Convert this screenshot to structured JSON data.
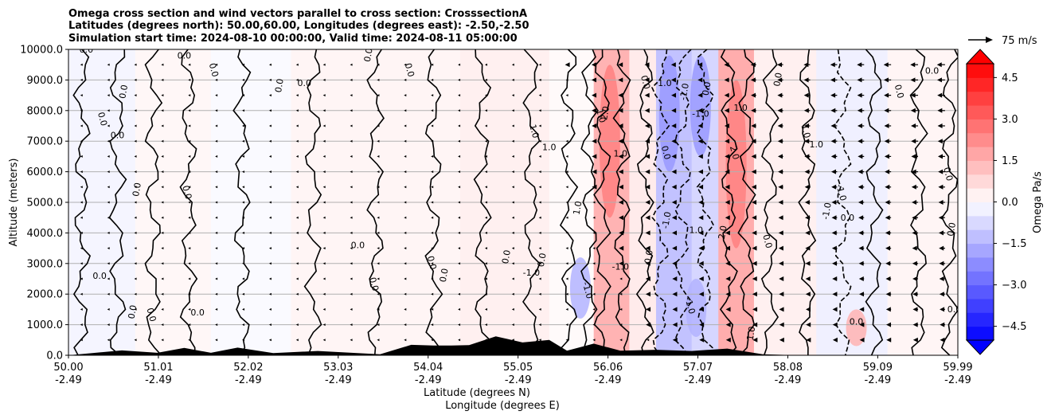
{
  "chart_data": {
    "type": "heatmap",
    "title_lines": [
      "Omega cross section and wind vectors parallel to cross section: CrosssectionA",
      "Latitudes (degrees north): 50.00,60.00, Longitudes (degrees east): -2.50,-2.50",
      "Simulation start time: 2024-08-10 00:00:00, Valid time: 2024-08-11 05:00:00"
    ],
    "xlabel_lat": "Latitude (degrees N)",
    "xlabel_lon": "Longitude (degrees E)",
    "ylabel": "Altitude (meters)",
    "xlim": [
      50.0,
      59.99
    ],
    "ylim": [
      0,
      10000
    ],
    "x_ticks": [
      {
        "lat": "50.00",
        "lon": "-2.49",
        "value": 50.0
      },
      {
        "lat": "51.01",
        "lon": "-2.49",
        "value": 51.01
      },
      {
        "lat": "52.02",
        "lon": "-2.49",
        "value": 52.02
      },
      {
        "lat": "53.03",
        "lon": "-2.49",
        "value": 53.03
      },
      {
        "lat": "54.04",
        "lon": "-2.49",
        "value": 54.04
      },
      {
        "lat": "55.05",
        "lon": "-2.49",
        "value": 55.05
      },
      {
        "lat": "56.06",
        "lon": "-2.49",
        "value": 56.06
      },
      {
        "lat": "57.07",
        "lon": "-2.49",
        "value": 57.07
      },
      {
        "lat": "58.08",
        "lon": "-2.49",
        "value": 58.08
      },
      {
        "lat": "59.09",
        "lon": "-2.49",
        "value": 59.09
      },
      {
        "lat": "59.99",
        "lon": "-2.49",
        "value": 59.99
      }
    ],
    "y_ticks": [
      {
        "label": "0.0",
        "value": 0
      },
      {
        "label": "1000.0",
        "value": 1000
      },
      {
        "label": "2000.0",
        "value": 2000
      },
      {
        "label": "3000.0",
        "value": 3000
      },
      {
        "label": "4000.0",
        "value": 4000
      },
      {
        "label": "5000.0",
        "value": 5000
      },
      {
        "label": "6000.0",
        "value": 6000
      },
      {
        "label": "7000.0",
        "value": 7000
      },
      {
        "label": "8000.0",
        "value": 8000
      },
      {
        "label": "9000.0",
        "value": 9000
      },
      {
        "label": "10000.0",
        "value": 10000
      }
    ],
    "grid": "horizontal",
    "colorbar": {
      "label": "Omega Pa/s",
      "range": [
        -5,
        5
      ],
      "levels": 20,
      "extend": "both",
      "ticks": [
        {
          "label": "4.5",
          "value": 4.5
        },
        {
          "label": "3.0",
          "value": 3.0
        },
        {
          "label": "1.5",
          "value": 1.5
        },
        {
          "label": "0.0",
          "value": 0.0
        },
        {
          "label": "−1.5",
          "value": -1.5
        },
        {
          "label": "−3.0",
          "value": -3.0
        },
        {
          "label": "−4.5",
          "value": -4.5
        }
      ],
      "colormap": "bwr"
    },
    "quiver_key": {
      "label": "75 m/s",
      "value": 75
    },
    "omega_bands": [
      {
        "lat_start": 50.0,
        "lat_end": 50.75,
        "omega": -0.2
      },
      {
        "lat_start": 50.75,
        "lat_end": 51.6,
        "omega": 0.15
      },
      {
        "lat_start": 51.6,
        "lat_end": 52.5,
        "omega": -0.1
      },
      {
        "lat_start": 52.5,
        "lat_end": 54.4,
        "omega": 0.2
      },
      {
        "lat_start": 54.4,
        "lat_end": 55.4,
        "omega": 0.3
      },
      {
        "lat_start": 55.4,
        "lat_end": 55.9,
        "omega": 0.1
      },
      {
        "lat_start": 55.9,
        "lat_end": 56.3,
        "omega": 1.5
      },
      {
        "lat_start": 56.3,
        "lat_end": 56.6,
        "omega": 0.4
      },
      {
        "lat_start": 56.6,
        "lat_end": 57.0,
        "omega": -1.2
      },
      {
        "lat_start": 57.0,
        "lat_end": 57.3,
        "omega": -0.8
      },
      {
        "lat_start": 57.3,
        "lat_end": 57.7,
        "omega": 1.6
      },
      {
        "lat_start": 57.7,
        "lat_end": 58.4,
        "omega": 0.3
      },
      {
        "lat_start": 58.4,
        "lat_end": 59.2,
        "omega": -0.3
      },
      {
        "lat_start": 59.2,
        "lat_end": 59.99,
        "omega": 0.2
      }
    ],
    "omega_patches": [
      {
        "lat": 56.08,
        "alt_min": 4500,
        "alt_max": 9500,
        "omega": 2.5
      },
      {
        "lat": 57.5,
        "alt_min": 3500,
        "alt_max": 9000,
        "omega": 2.5
      },
      {
        "lat": 56.75,
        "alt_min": 6000,
        "alt_max": 9800,
        "omega": -2.0
      },
      {
        "lat": 57.1,
        "alt_min": 6500,
        "alt_max": 9800,
        "omega": -2.0
      },
      {
        "lat": 55.75,
        "alt_min": 1200,
        "alt_max": 3200,
        "omega": -1.5
      },
      {
        "lat": 57.05,
        "alt_min": 600,
        "alt_max": 2500,
        "omega": -1.5
      },
      {
        "lat": 58.85,
        "alt_min": 300,
        "alt_max": 1500,
        "omega": 1.5
      }
    ],
    "contour_lines": [
      {
        "lat": 50.15,
        "level": "0.0",
        "dashed": false
      },
      {
        "lat": 50.55,
        "level": "0.0",
        "dashed": false
      },
      {
        "lat": 50.95,
        "level": "0.0",
        "dashed": false
      },
      {
        "lat": 51.35,
        "level": "0.0",
        "dashed": false
      },
      {
        "lat": 51.95,
        "level": "0.0",
        "dashed": false
      },
      {
        "lat": 52.75,
        "level": "0.0",
        "dashed": false
      },
      {
        "lat": 53.45,
        "level": "0.0",
        "dashed": false
      },
      {
        "lat": 54.1,
        "level": "0.0",
        "dashed": false
      },
      {
        "lat": 54.65,
        "level": "0.0",
        "dashed": false
      },
      {
        "lat": 55.2,
        "level": "0.0",
        "dashed": false
      },
      {
        "lat": 55.62,
        "level": "1.0",
        "dashed": false
      },
      {
        "lat": 55.85,
        "level": "1.0",
        "dashed": false
      },
      {
        "lat": 56.0,
        "level": "2.0",
        "dashed": false
      },
      {
        "lat": 56.22,
        "level": "1.0",
        "dashed": false
      },
      {
        "lat": 56.48,
        "level": "0.0",
        "dashed": false
      },
      {
        "lat": 56.65,
        "level": "-1.0",
        "dashed": true
      },
      {
        "lat": 56.9,
        "level": "-1.0",
        "dashed": true
      },
      {
        "lat": 57.15,
        "level": "-1.0",
        "dashed": true
      },
      {
        "lat": 57.42,
        "level": "2.0",
        "dashed": false
      },
      {
        "lat": 57.62,
        "level": "1.0",
        "dashed": false
      },
      {
        "lat": 57.88,
        "level": "0.0",
        "dashed": false
      },
      {
        "lat": 58.3,
        "level": "1.0",
        "dashed": false
      },
      {
        "lat": 58.7,
        "level": "-1.0",
        "dashed": true
      },
      {
        "lat": 59.05,
        "level": "0.0",
        "dashed": false
      },
      {
        "lat": 59.55,
        "level": "0.0",
        "dashed": false
      },
      {
        "lat": 59.9,
        "level": "0.0",
        "dashed": false
      }
    ],
    "contour_labels": [
      {
        "text": "0.0",
        "lat": 50.2,
        "alt": 9900
      },
      {
        "text": "0.0",
        "lat": 50.35,
        "alt": 7700
      },
      {
        "text": "0.0",
        "lat": 50.65,
        "alt": 8600
      },
      {
        "text": "0.0",
        "lat": 50.55,
        "alt": 7100
      },
      {
        "text": "0.0",
        "lat": 50.8,
        "alt": 5400
      },
      {
        "text": "0.0",
        "lat": 51.3,
        "alt": 5300
      },
      {
        "text": "0.0",
        "lat": 51.3,
        "alt": 9700
      },
      {
        "text": "0.0",
        "lat": 51.6,
        "alt": 9300
      },
      {
        "text": "0.0",
        "lat": 52.4,
        "alt": 8800
      },
      {
        "text": "0.0",
        "lat": 52.65,
        "alt": 8800
      },
      {
        "text": "0.0",
        "lat": 53.4,
        "alt": 9800
      },
      {
        "text": "0.0",
        "lat": 53.8,
        "alt": 9300
      },
      {
        "text": "0.0",
        "lat": 53.25,
        "alt": 3500
      },
      {
        "text": "0.0",
        "lat": 54.05,
        "alt": 3000
      },
      {
        "text": "0.0",
        "lat": 54.25,
        "alt": 2600
      },
      {
        "text": "0.0",
        "lat": 50.35,
        "alt": 2500
      },
      {
        "text": "0.0",
        "lat": 50.75,
        "alt": 1400
      },
      {
        "text": "0.0",
        "lat": 50.9,
        "alt": 1300
      },
      {
        "text": "0.0",
        "lat": 51.45,
        "alt": 1300
      },
      {
        "text": "0.0",
        "lat": 53.4,
        "alt": 2300
      },
      {
        "text": "0.0",
        "lat": 54.95,
        "alt": 3200
      },
      {
        "text": "-1.0",
        "lat": 55.2,
        "alt": 2600
      },
      {
        "text": "0.0",
        "lat": 55.35,
        "alt": 3100
      },
      {
        "text": "1.0",
        "lat": 55.2,
        "alt": 7300
      },
      {
        "text": "1.0",
        "lat": 55.4,
        "alt": 6700
      },
      {
        "text": "1.0",
        "lat": 55.95,
        "alt": 7800
      },
      {
        "text": "2.0",
        "lat": 56.06,
        "alt": 7900
      },
      {
        "text": "1.0",
        "lat": 56.2,
        "alt": 6500
      },
      {
        "text": "1.0",
        "lat": 55.75,
        "alt": 4800
      },
      {
        "text": "0.0",
        "lat": 56.45,
        "alt": 8900
      },
      {
        "text": "-1.0",
        "lat": 56.68,
        "alt": 8800
      },
      {
        "text": "0.0",
        "lat": 56.68,
        "alt": 6600
      },
      {
        "text": "-1.0",
        "lat": 56.95,
        "alt": 8600
      },
      {
        "text": "-1.0",
        "lat": 57.1,
        "alt": 7800
      },
      {
        "text": "0.0",
        "lat": 57.2,
        "alt": 8700
      },
      {
        "text": "2.0",
        "lat": 57.45,
        "alt": 6600
      },
      {
        "text": "1.0",
        "lat": 57.55,
        "alt": 8000
      },
      {
        "text": "0.0",
        "lat": 57.82,
        "alt": 3700
      },
      {
        "text": "-1.0",
        "lat": 56.75,
        "alt": 4400
      },
      {
        "text": "1.0",
        "lat": 57.05,
        "alt": 4000
      },
      {
        "text": "2.0",
        "lat": 57.38,
        "alt": 4000
      },
      {
        "text": "1.0",
        "lat": 58.25,
        "alt": 7300
      },
      {
        "text": "1.0",
        "lat": 58.4,
        "alt": 6800
      },
      {
        "text": "-1.0",
        "lat": 58.65,
        "alt": 5300
      },
      {
        "text": "-1.0",
        "lat": 58.55,
        "alt": 4700
      },
      {
        "text": "0.0",
        "lat": 58.75,
        "alt": 4400
      },
      {
        "text": "0.0",
        "lat": 58.0,
        "alt": 9000
      },
      {
        "text": "0.0",
        "lat": 59.3,
        "alt": 8600
      },
      {
        "text": "0.0",
        "lat": 59.7,
        "alt": 9200
      },
      {
        "text": "0.0",
        "lat": 59.85,
        "alt": 5900
      },
      {
        "text": "0.0",
        "lat": 59.95,
        "alt": 4100
      },
      {
        "text": "0.0",
        "lat": 59.95,
        "alt": 1400
      },
      {
        "text": "1.0",
        "lat": 57.7,
        "alt": 700
      },
      {
        "text": "-1.0",
        "lat": 55.8,
        "alt": 2100
      },
      {
        "text": "-1.0",
        "lat": 56.2,
        "alt": 2800
      },
      {
        "text": "-1.0",
        "lat": 56.95,
        "alt": 1600
      },
      {
        "text": "0.0",
        "lat": 56.55,
        "alt": 3200
      },
      {
        "text": "0.0",
        "lat": 58.85,
        "alt": 1000
      }
    ],
    "terrain": [
      {
        "lat": 50.0,
        "alt": 0
      },
      {
        "lat": 50.6,
        "alt": 40
      },
      {
        "lat": 51.0,
        "alt": 80
      },
      {
        "lat": 51.3,
        "alt": 120
      },
      {
        "lat": 51.6,
        "alt": 80
      },
      {
        "lat": 51.9,
        "alt": 130
      },
      {
        "lat": 52.3,
        "alt": 70
      },
      {
        "lat": 52.8,
        "alt": 20
      },
      {
        "lat": 53.5,
        "alt": 30
      },
      {
        "lat": 53.85,
        "alt": 220
      },
      {
        "lat": 54.1,
        "alt": 320
      },
      {
        "lat": 54.3,
        "alt": 200
      },
      {
        "lat": 54.5,
        "alt": 330
      },
      {
        "lat": 54.8,
        "alt": 500
      },
      {
        "lat": 55.1,
        "alt": 420
      },
      {
        "lat": 55.4,
        "alt": 380
      },
      {
        "lat": 55.6,
        "alt": 150
      },
      {
        "lat": 55.9,
        "alt": 260
      },
      {
        "lat": 56.2,
        "alt": 150
      },
      {
        "lat": 56.6,
        "alt": 60
      },
      {
        "lat": 57.0,
        "alt": 140
      },
      {
        "lat": 57.4,
        "alt": 100
      },
      {
        "lat": 57.8,
        "alt": 30
      },
      {
        "lat": 58.2,
        "alt": 0
      },
      {
        "lat": 59.99,
        "alt": 0
      }
    ],
    "wind_vectors": {
      "lat_step": 0.303,
      "alt_levels": [
        500,
        1000,
        1500,
        2000,
        2500,
        3000,
        3500,
        4000,
        4500,
        5000,
        5500,
        6000,
        6500,
        7000,
        7500,
        8000,
        8500,
        9000,
        9500
      ],
      "speed_profile": [
        {
          "lat": 50.0,
          "speed": -2
        },
        {
          "lat": 53.0,
          "speed": -4
        },
        {
          "lat": 55.5,
          "speed": -6
        },
        {
          "lat": 57.0,
          "speed": -12
        },
        {
          "lat": 58.5,
          "speed": -18
        },
        {
          "lat": 59.99,
          "speed": -22
        }
      ]
    }
  }
}
